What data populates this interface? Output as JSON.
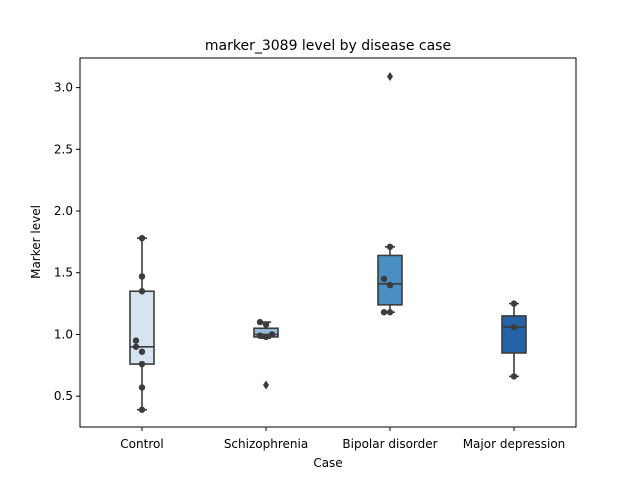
{
  "chart_data": {
    "type": "box",
    "title": "marker_3089 level by disease case",
    "xlabel": "Case",
    "ylabel": "Marker level",
    "ylim": [
      0.25,
      3.24
    ],
    "yticks": [
      "0.5",
      "1.0",
      "1.5",
      "2.0",
      "2.5",
      "3.0"
    ],
    "grid": false,
    "categories": [
      "Control",
      "Schizophrenia",
      "Bipolar disorder",
      "Major depression"
    ],
    "colors": [
      "#d6e4f2",
      "#93bedc",
      "#4a8fc2",
      "#2563a6"
    ],
    "boxes": [
      {
        "whisker_low": 0.39,
        "q1": 0.76,
        "median": 0.9,
        "q3": 1.35,
        "whisker_high": 1.78,
        "outliers": []
      },
      {
        "whisker_low": 0.97,
        "q1": 0.98,
        "median": 1.0,
        "q3": 1.05,
        "whisker_high": 1.1,
        "outliers": [
          0.59
        ]
      },
      {
        "whisker_low": 1.18,
        "q1": 1.24,
        "median": 1.41,
        "q3": 1.64,
        "whisker_high": 1.71,
        "outliers": [
          3.09
        ]
      },
      {
        "whisker_low": 0.66,
        "q1": 0.85,
        "median": 1.06,
        "q3": 1.15,
        "whisker_high": 1.25,
        "outliers": []
      }
    ],
    "points": [
      [
        1.78,
        1.47,
        1.35,
        0.95,
        0.9,
        0.86,
        0.76,
        0.57,
        0.39
      ],
      [
        1.1,
        1.08,
        1.0,
        0.99,
        0.98
      ],
      [
        1.71,
        1.45,
        1.4,
        1.18,
        1.18
      ],
      [
        1.25,
        1.06,
        0.66
      ]
    ]
  }
}
